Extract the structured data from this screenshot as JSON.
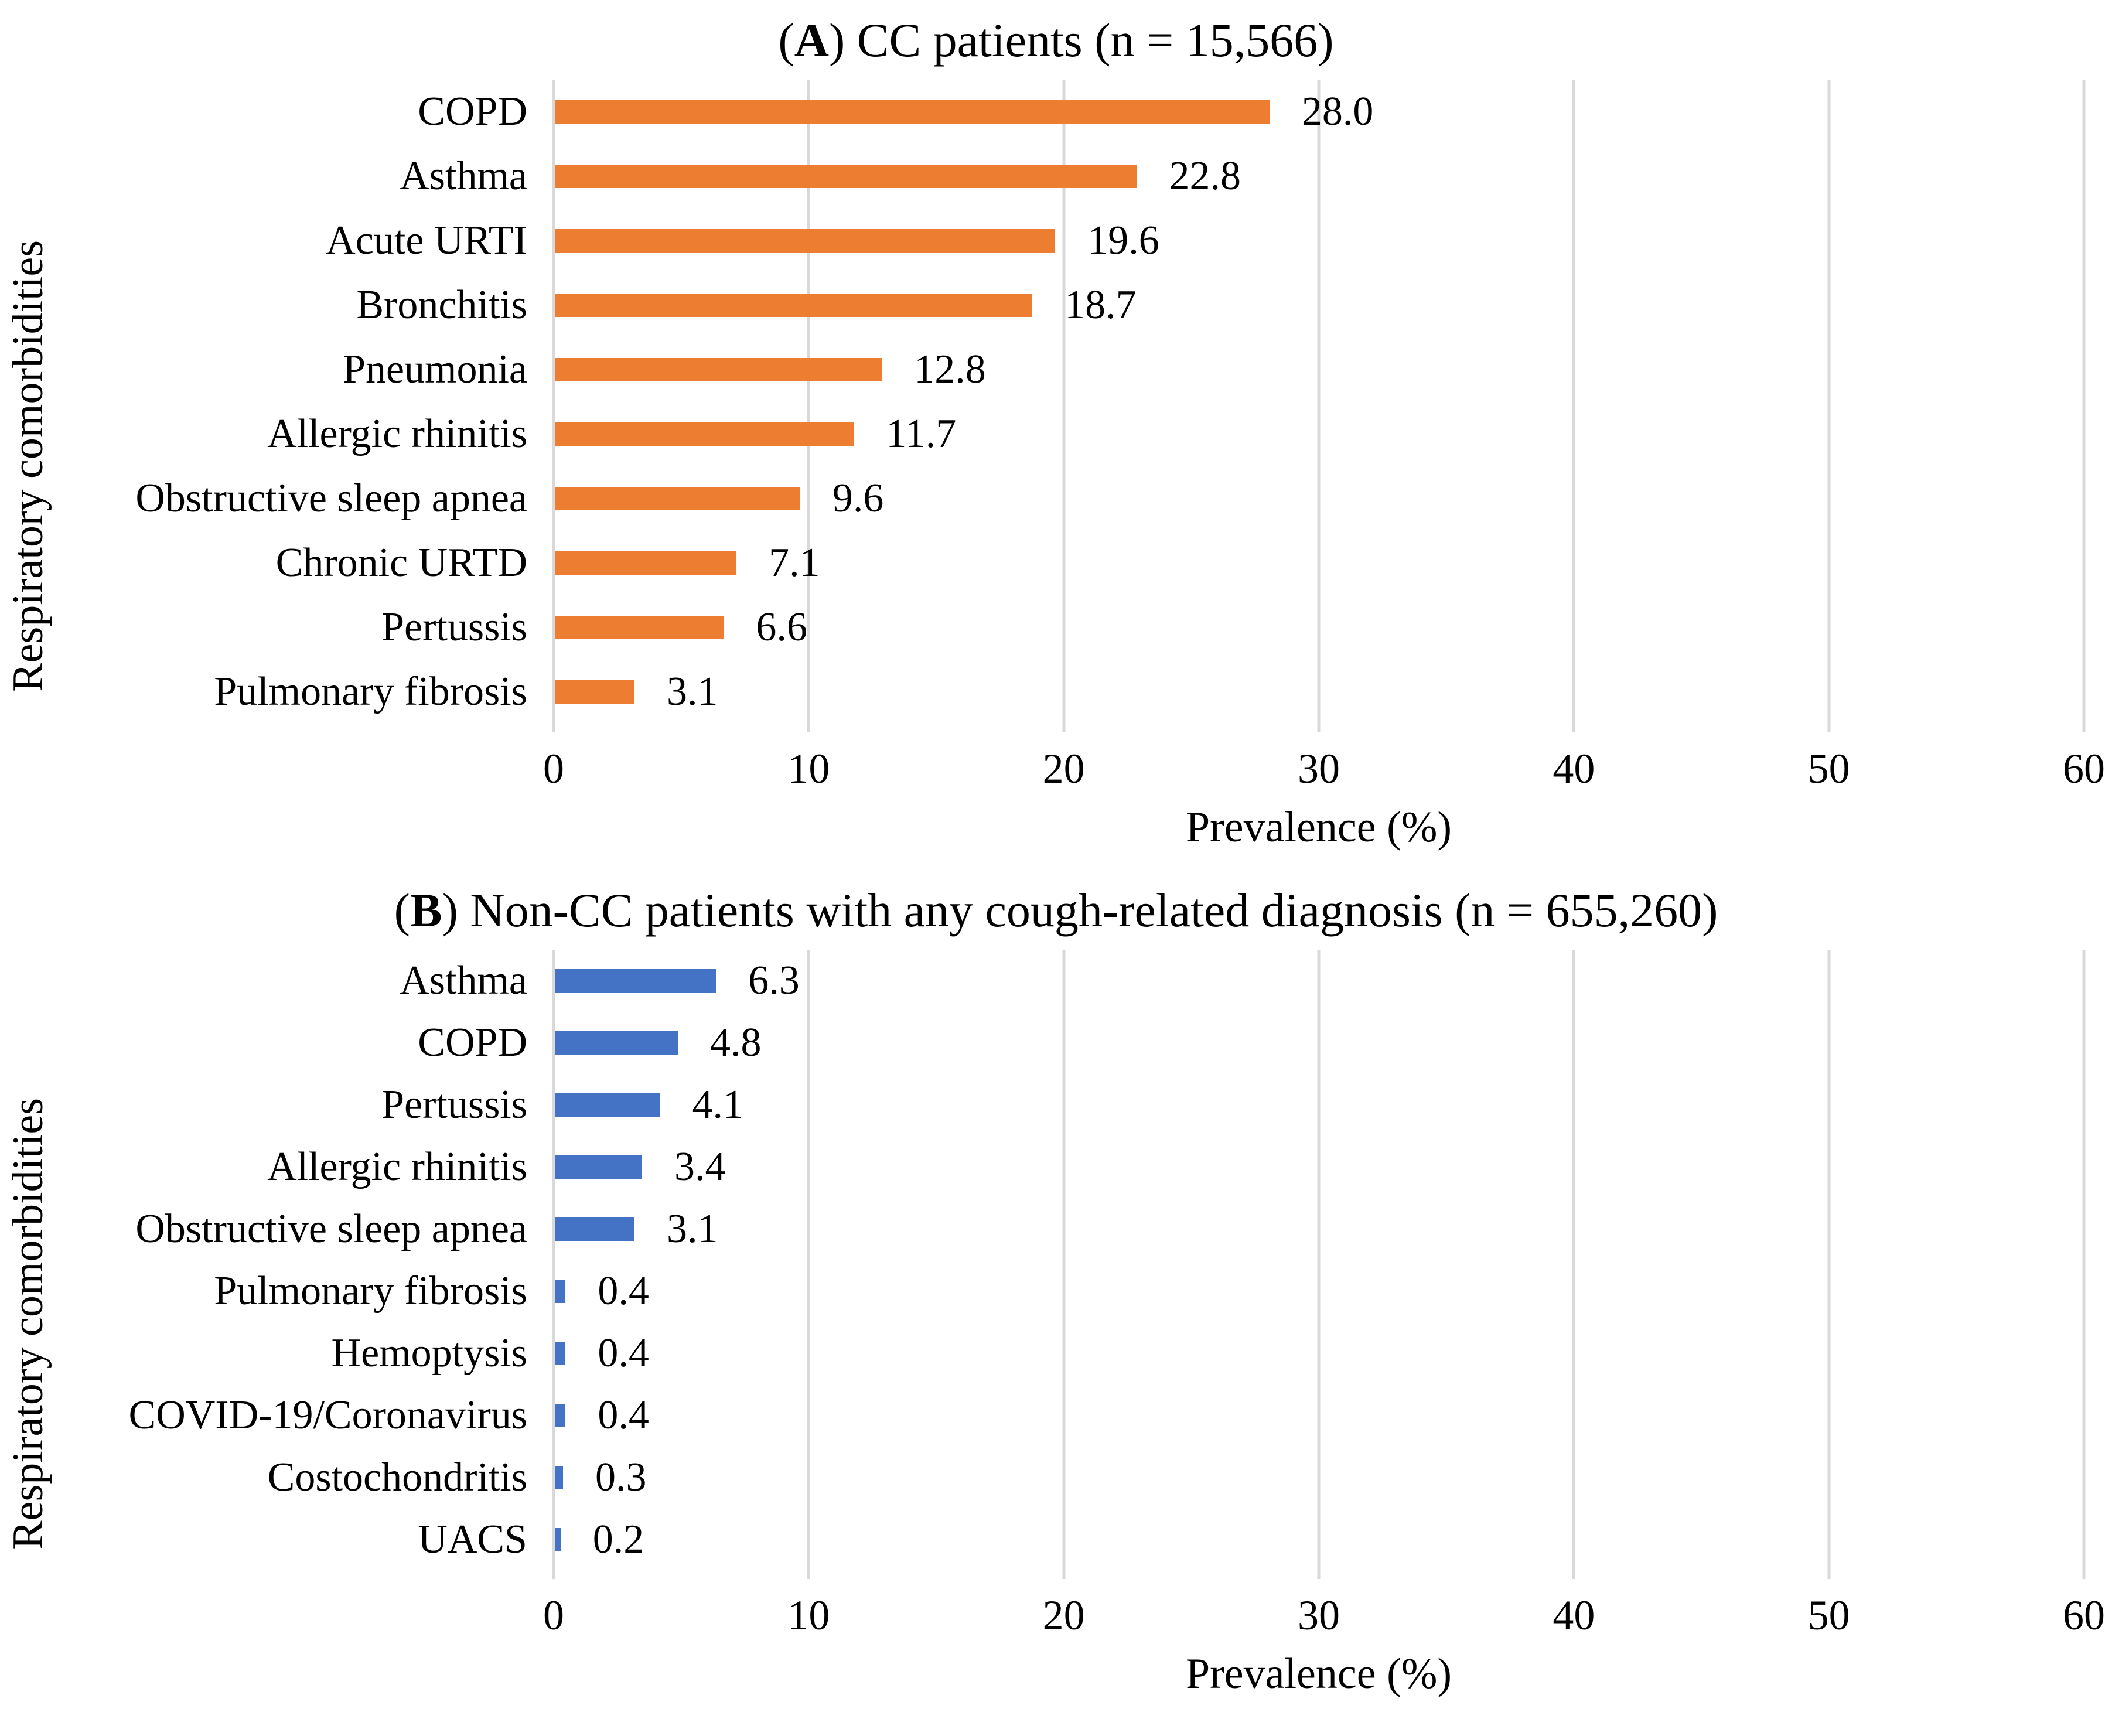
{
  "chart_data": [
    {
      "type": "bar",
      "orientation": "horizontal",
      "panel_letter": "A",
      "title_open": "(",
      "title_after_letter": ") CC patients (n = 15,566)",
      "title": "(A) CC patients (n = 15,566)",
      "xlabel": "Prevalence (%)",
      "ylabel": "Respiratory comorbidities",
      "xlim": [
        0,
        60
      ],
      "x_ticks": [
        "0",
        "10",
        "20",
        "30",
        "40",
        "50",
        "60"
      ],
      "grid": true,
      "gridline_color": "#d9d9d9",
      "bar_color": "#ed7d31",
      "categories": [
        "COPD",
        "Asthma",
        "Acute URTI",
        "Bronchitis",
        "Pneumonia",
        "Allergic rhinitis",
        "Obstructive sleep apnea",
        "Chronic URTD",
        "Pertussis",
        "Pulmonary fibrosis"
      ],
      "values": [
        28.0,
        22.8,
        19.6,
        18.7,
        12.8,
        11.7,
        9.6,
        7.1,
        6.6,
        3.1
      ],
      "value_labels": [
        "28.0",
        "22.8",
        "19.6",
        "18.7",
        "12.8",
        "11.7",
        "9.6",
        "7.1",
        "6.6",
        "3.1"
      ]
    },
    {
      "type": "bar",
      "orientation": "horizontal",
      "panel_letter": "B",
      "title_open": "(",
      "title_after_letter": ") Non-CC patients with any cough-related diagnosis (n = 655,260)",
      "title": "(B) Non-CC patients with any cough-related diagnosis (n = 655,260)",
      "xlabel": "Prevalence (%)",
      "ylabel": "Respiratory comorbidities",
      "xlim": [
        0,
        60
      ],
      "x_ticks": [
        "0",
        "10",
        "20",
        "30",
        "40",
        "50",
        "60"
      ],
      "grid": true,
      "gridline_color": "#d9d9d9",
      "bar_color": "#4472c4",
      "categories": [
        "Asthma",
        "COPD",
        "Pertussis",
        "Allergic rhinitis",
        "Obstructive sleep apnea",
        "Pulmonary fibrosis",
        "Hemoptysis",
        "COVID-19/Coronavirus",
        "Costochondritis",
        "UACS"
      ],
      "values": [
        6.3,
        4.8,
        4.1,
        3.4,
        3.1,
        0.4,
        0.4,
        0.4,
        0.3,
        0.2
      ],
      "value_labels": [
        "6.3",
        "4.8",
        "4.1",
        "3.4",
        "3.1",
        "0.4",
        "0.4",
        "0.4",
        "0.3",
        "0.2"
      ]
    }
  ]
}
